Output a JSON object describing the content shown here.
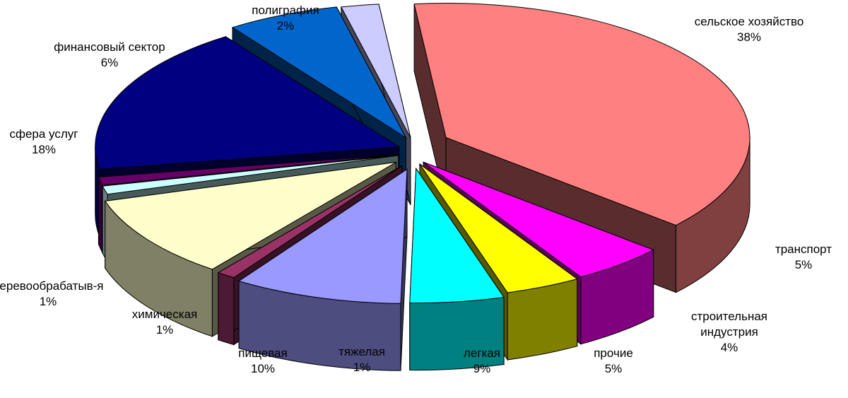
{
  "chart_data": {
    "type": "pie",
    "style": "3d-exploded",
    "title": "",
    "legend": "none",
    "slices": [
      {
        "label": "сельское хозяйство",
        "value": 38,
        "pct_text": "38%",
        "color": "#FF8080"
      },
      {
        "label": "транспорт",
        "value": 5,
        "pct_text": "5%",
        "color": "#FF00FF"
      },
      {
        "label": "строительная индустрия",
        "label_lines": [
          "строительная",
          "индустрия"
        ],
        "value": 4,
        "pct_text": "4%",
        "color": "#FFFF00"
      },
      {
        "label": "прочие",
        "value": 5,
        "pct_text": "5%",
        "color": "#00FFFF"
      },
      {
        "label": "легкая",
        "value": 9,
        "pct_text": "9%",
        "color": "#9999FF"
      },
      {
        "label": "тяжелая",
        "value": 1,
        "pct_text": "1%",
        "color": "#993366"
      },
      {
        "label": "пищевая",
        "value": 10,
        "pct_text": "10%",
        "color": "#FFFFCC"
      },
      {
        "label": "химическая",
        "value": 1,
        "pct_text": "1%",
        "color": "#CCFFFF"
      },
      {
        "label": "деревообрабатыв-я",
        "value": 1,
        "pct_text": "1%",
        "color": "#660066"
      },
      {
        "label": "сфера услуг",
        "value": 18,
        "pct_text": "18%",
        "color": "#000080"
      },
      {
        "label": "финансовый сектор",
        "value": 6,
        "pct_text": "6%",
        "color": "#0066CC"
      },
      {
        "label": "полиграфия",
        "value": 2,
        "pct_text": "2%",
        "color": "#CCCCFF"
      }
    ]
  }
}
